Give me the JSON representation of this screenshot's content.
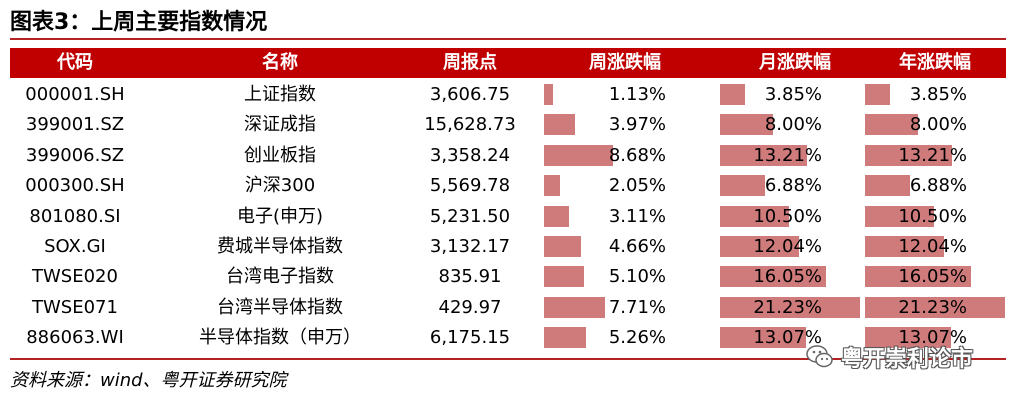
{
  "title": "图表3：上周主要指数情况",
  "headers": [
    "代码",
    "名称",
    "周报点",
    "周涨跌幅",
    "月涨跌幅",
    "年涨跌幅"
  ],
  "rows": [
    {
      "code": "000001.SH",
      "name": "上证指数",
      "close": "3,606.75",
      "week": "1.13%",
      "month": "3.85%",
      "year": "3.85%",
      "week_v": 1.13,
      "month_v": 3.85,
      "year_v": 3.85
    },
    {
      "code": "399001.SZ",
      "name": "深证成指",
      "close": "15,628.73",
      "week": "3.97%",
      "month": "8.00%",
      "year": "8.00%",
      "week_v": 3.97,
      "month_v": 8.0,
      "year_v": 8.0
    },
    {
      "code": "399006.SZ",
      "name": "创业板指",
      "close": "3,358.24",
      "week": "8.68%",
      "month": "13.21%",
      "year": "13.21%",
      "week_v": 8.68,
      "month_v": 13.21,
      "year_v": 13.21
    },
    {
      "code": "000300.SH",
      "name": "沪深300",
      "close": "5,569.78",
      "week": "2.05%",
      "month": "6.88%",
      "year": "6.88%",
      "week_v": 2.05,
      "month_v": 6.88,
      "year_v": 6.88
    },
    {
      "code": "801080.SI",
      "name": "电子(申万)",
      "close": "5,231.50",
      "week": "3.11%",
      "month": "10.50%",
      "year": "10.50%",
      "week_v": 3.11,
      "month_v": 10.5,
      "year_v": 10.5
    },
    {
      "code": "SOX.GI",
      "name": "费城半导体指数",
      "close": "3,132.17",
      "week": "4.66%",
      "month": "12.04%",
      "year": "12.04%",
      "week_v": 4.66,
      "month_v": 12.04,
      "year_v": 12.04
    },
    {
      "code": "TWSE020",
      "name": "台湾电子指数",
      "close": "835.91",
      "week": "5.10%",
      "month": "16.05%",
      "year": "16.05%",
      "week_v": 5.1,
      "month_v": 16.05,
      "year_v": 16.05
    },
    {
      "code": "TWSE071",
      "name": "台湾半导体指数",
      "close": "429.97",
      "week": "7.71%",
      "month": "21.23%",
      "year": "21.23%",
      "week_v": 7.71,
      "month_v": 21.23,
      "year_v": 21.23
    },
    {
      "code": "886063.WI",
      "name": "半导体指数（申万）",
      "close": "6,175.15",
      "week": "5.26%",
      "month": "13.07%",
      "year": "13.07%",
      "week_v": 5.26,
      "month_v": 13.07,
      "year_v": 13.07
    }
  ],
  "source": "资料来源：wind、粤开证券研究院",
  "watermark": "粤开崇利论市",
  "colors": {
    "header_bg": "#c00000",
    "bar": "#d07b7b",
    "rule": "#b22222"
  }
}
